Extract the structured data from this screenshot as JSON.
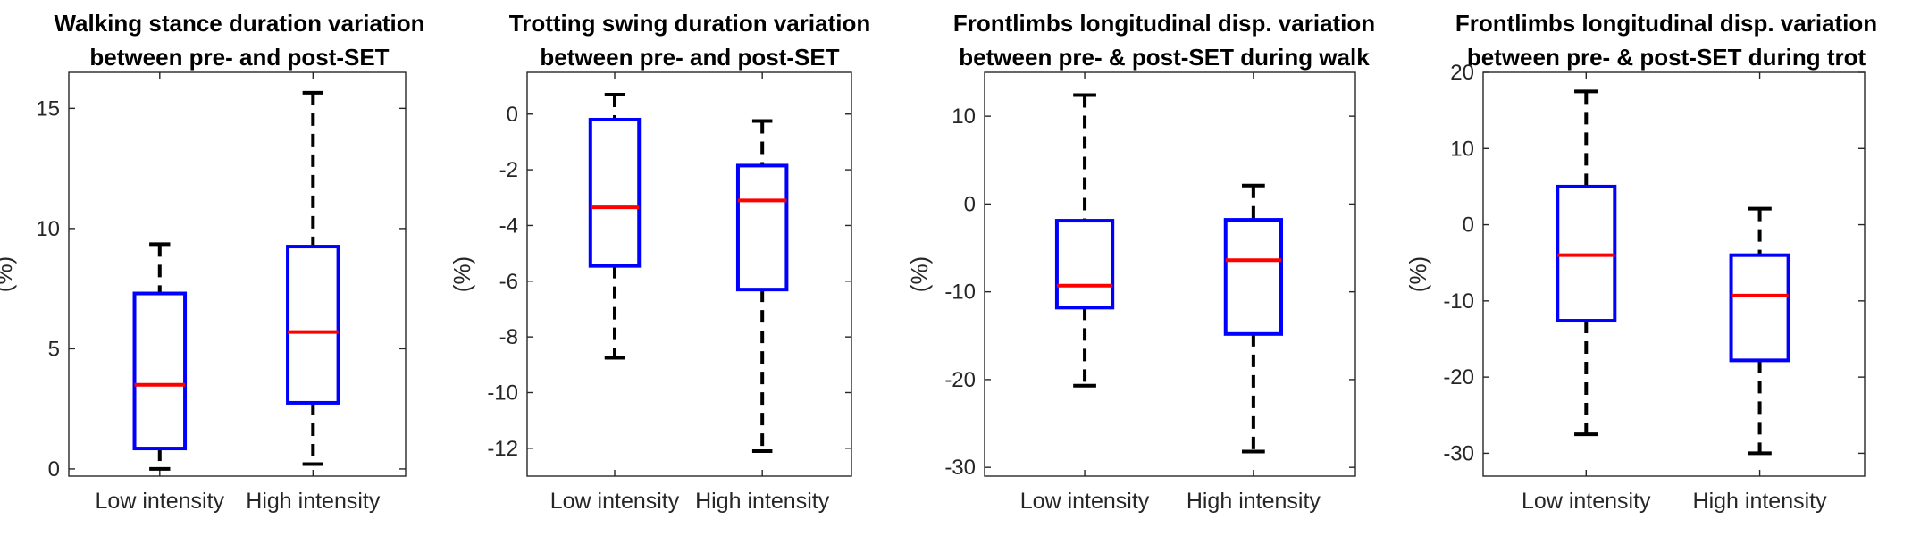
{
  "colors": {
    "box": "#0000ff",
    "median": "#ff0000",
    "whisker": "#000000",
    "axis": "#262626"
  },
  "chart_data": [
    {
      "type": "boxplot",
      "title_lines": [
        "Walking stance duration variation",
        "between pre- and post-SET"
      ],
      "ylabel": "(%)",
      "categories": [
        "Low intensity",
        "High intensity"
      ],
      "ylim": [
        -0.3,
        16.5
      ],
      "yticks": [
        0,
        5,
        10,
        15
      ],
      "boxes": [
        {
          "whisker_low": 0,
          "q1": 0.85,
          "median": 3.5,
          "q3": 7.3,
          "whisker_high": 9.35
        },
        {
          "whisker_low": 0.2,
          "q1": 2.75,
          "median": 5.7,
          "q3": 9.25,
          "whisker_high": 15.65
        }
      ]
    },
    {
      "type": "boxplot",
      "title_lines": [
        "Trotting swing duration variation",
        "between pre- and post-SET"
      ],
      "ylabel": "(%)",
      "categories": [
        "Low intensity",
        "High intensity"
      ],
      "ylim": [
        -13,
        1.5
      ],
      "yticks": [
        0,
        -2,
        -4,
        -6,
        -8,
        -10,
        -12
      ],
      "boxes": [
        {
          "whisker_low": -8.75,
          "q1": -5.45,
          "median": -3.35,
          "q3": -0.2,
          "whisker_high": 0.7
        },
        {
          "whisker_low": -12.1,
          "q1": -6.3,
          "median": -3.1,
          "q3": -1.85,
          "whisker_high": -0.25
        }
      ]
    },
    {
      "type": "boxplot",
      "title_lines": [
        "Frontlimbs longitudinal disp. variation",
        "between pre- & post-SET during walk"
      ],
      "ylabel": "(%)",
      "categories": [
        "Low intensity",
        "High intensity"
      ],
      "ylim": [
        -31,
        15
      ],
      "yticks": [
        10,
        0,
        -10,
        -20,
        -30
      ],
      "boxes": [
        {
          "whisker_low": -20.7,
          "q1": -11.8,
          "median": -9.3,
          "q3": -1.9,
          "whisker_high": 12.4
        },
        {
          "whisker_low": -28.2,
          "q1": -14.8,
          "median": -6.4,
          "q3": -1.8,
          "whisker_high": 2.1
        }
      ]
    },
    {
      "type": "boxplot",
      "title_lines": [
        "Frontlimbs longitudinal disp. variation",
        "between pre- & post-SET during trot"
      ],
      "ylabel": "(%)",
      "categories": [
        "Low intensity",
        "High intensity"
      ],
      "ylim": [
        -33,
        20
      ],
      "yticks": [
        20,
        10,
        0,
        -10,
        -20,
        -30
      ],
      "boxes": [
        {
          "whisker_low": -27.5,
          "q1": -12.6,
          "median": -4,
          "q3": 5,
          "whisker_high": 17.5
        },
        {
          "whisker_low": -30,
          "q1": -17.8,
          "median": -9.3,
          "q3": -4,
          "whisker_high": 2.1
        }
      ]
    }
  ]
}
